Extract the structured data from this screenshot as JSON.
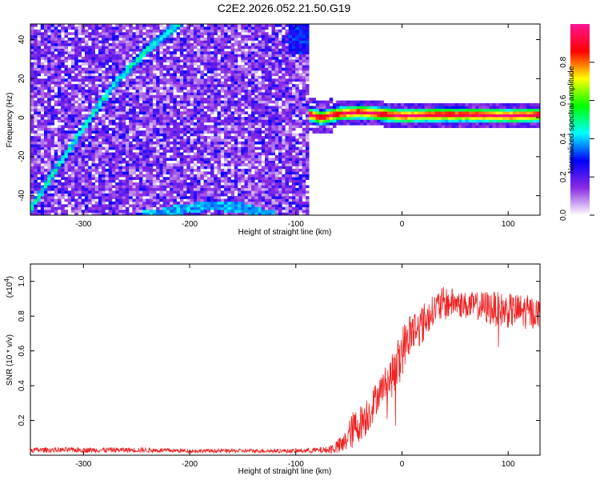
{
  "figure": {
    "title": "C2E2.2026.052.21.50.G19"
  },
  "chart_data": [
    {
      "type": "heatmap",
      "title": "C2E2.2026.052.21.50.G19",
      "xlabel": "Height of straight line (km)",
      "ylabel": "Frequency (Hz)",
      "xlim": [
        -350,
        130
      ],
      "ylim": [
        -50,
        48
      ],
      "x_ticks": [
        -300,
        -200,
        -100,
        0,
        100
      ],
      "x_tick_labels": [
        "-300",
        "-200",
        "-100",
        "0",
        "100"
      ],
      "y_ticks": [
        -40,
        -20,
        0,
        20,
        40
      ],
      "y_tick_labels": [
        "-40",
        "-20",
        "0",
        "20",
        "40"
      ],
      "colorbar": {
        "label": "Normalized spectral amplitude",
        "range": [
          0,
          1
        ],
        "ticks": [
          0.0,
          0.2,
          0.4,
          0.6,
          0.8
        ],
        "tick_labels": [
          "0.0",
          "0.2",
          "0.4",
          "0.6",
          "0.8"
        ],
        "colormap": [
          "#ffffff",
          "#8a2be2",
          "#0000ff",
          "#00ffff",
          "#00ff00",
          "#ffff00",
          "#ff0000",
          "#ff1493"
        ]
      },
      "features": {
        "noise_region_x": [
          -350,
          -88
        ],
        "bright_curve_1": [
          [
            -350,
            -47
          ],
          [
            -330,
            -30
          ],
          [
            -300,
            -5
          ],
          [
            -270,
            18
          ],
          [
            -240,
            35
          ],
          [
            -205,
            50
          ]
        ],
        "bright_curve_2": [
          [
            -235,
            -50
          ],
          [
            -210,
            -47
          ],
          [
            -180,
            -45
          ],
          [
            -150,
            -46
          ],
          [
            -125,
            -50
          ]
        ],
        "carrier_line": [
          [
            -90,
            2
          ],
          [
            -75,
            0
          ],
          [
            -60,
            2
          ],
          [
            -40,
            3
          ],
          [
            -20,
            2
          ],
          [
            0,
            1
          ],
          [
            30,
            1.5
          ],
          [
            60,
            1.5
          ],
          [
            100,
            1
          ],
          [
            130,
            1.5
          ]
        ]
      },
      "grid": false
    },
    {
      "type": "line",
      "title": "",
      "xlabel": "Height of straight line (km)",
      "ylabel": "SNR (10 * v/v)",
      "y_scale_label": "(x10",
      "y_scale_exponent": "4",
      "y_scale_close": ")",
      "xlim": [
        -350,
        130
      ],
      "ylim": [
        0,
        1.1
      ],
      "x_ticks": [
        -300,
        -200,
        -100,
        0,
        100
      ],
      "x_tick_labels": [
        "-300",
        "-200",
        "-100",
        "0",
        "100"
      ],
      "y_ticks": [
        0.2,
        0.4,
        0.6,
        0.8,
        1.0
      ],
      "y_tick_labels": [
        "0.2",
        "0.4",
        "0.6",
        "0.8",
        "1.0"
      ],
      "series": [
        {
          "color": "#ee2222",
          "x": [
            -350,
            -300,
            -250,
            -200,
            -150,
            -100,
            -70,
            -55,
            -50,
            -45,
            -40,
            -35,
            -30,
            -25,
            -20,
            -15,
            -10,
            -5,
            0,
            5,
            10,
            15,
            20,
            25,
            30,
            35,
            40,
            50,
            60,
            70,
            80,
            90,
            100,
            110,
            120,
            130
          ],
          "y": [
            0.03,
            0.03,
            0.03,
            0.025,
            0.025,
            0.025,
            0.03,
            0.06,
            0.12,
            0.15,
            0.18,
            0.22,
            0.25,
            0.32,
            0.38,
            0.42,
            0.45,
            0.5,
            0.6,
            0.67,
            0.72,
            0.73,
            0.76,
            0.8,
            0.84,
            0.86,
            0.87,
            0.88,
            0.86,
            0.86,
            0.85,
            0.84,
            0.83,
            0.83,
            0.82,
            0.82
          ],
          "noise": [
            0.015,
            0.015,
            0.015,
            0.012,
            0.012,
            0.012,
            0.02,
            0.06,
            0.08,
            0.12,
            0.1,
            0.12,
            0.1,
            0.1,
            0.08,
            0.1,
            0.12,
            0.15,
            0.15,
            0.12,
            0.15,
            0.1,
            0.12,
            0.1,
            0.08,
            0.1,
            0.1,
            0.08,
            0.08,
            0.08,
            0.1,
            0.1,
            0.1,
            0.1,
            0.1,
            0.08
          ]
        }
      ],
      "grid": false
    }
  ]
}
